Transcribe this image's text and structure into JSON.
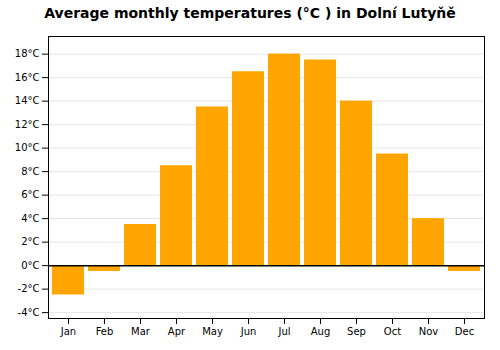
{
  "chart_data": {
    "type": "bar",
    "title": "Average monthly temperatures (°C ) in Dolní Lutyňě",
    "categories": [
      "Jan",
      "Feb",
      "Mar",
      "Apr",
      "May",
      "Jun",
      "Jul",
      "Aug",
      "Sep",
      "Oct",
      "Nov",
      "Dec"
    ],
    "values": [
      -2.5,
      -0.5,
      3.5,
      8.5,
      13.5,
      16.5,
      18.0,
      17.5,
      14.0,
      9.5,
      4.0,
      -0.5
    ],
    "color": "#FFA500",
    "ylim": [
      -4.5,
      19.5
    ],
    "yticks": [
      {
        "value": -4,
        "label": "-4°C"
      },
      {
        "value": -2,
        "label": "-2°C"
      },
      {
        "value": 0,
        "label": "0°C"
      },
      {
        "value": 2,
        "label": "2°C"
      },
      {
        "value": 4,
        "label": "4°C"
      },
      {
        "value": 6,
        "label": "6°C"
      },
      {
        "value": 8,
        "label": "8°C"
      },
      {
        "value": 10,
        "label": "10°C"
      },
      {
        "value": 12,
        "label": "12°C"
      },
      {
        "value": 14,
        "label": "14°C"
      },
      {
        "value": 16,
        "label": "16°C"
      },
      {
        "value": 18,
        "label": "18°C"
      }
    ],
    "grid": true
  }
}
